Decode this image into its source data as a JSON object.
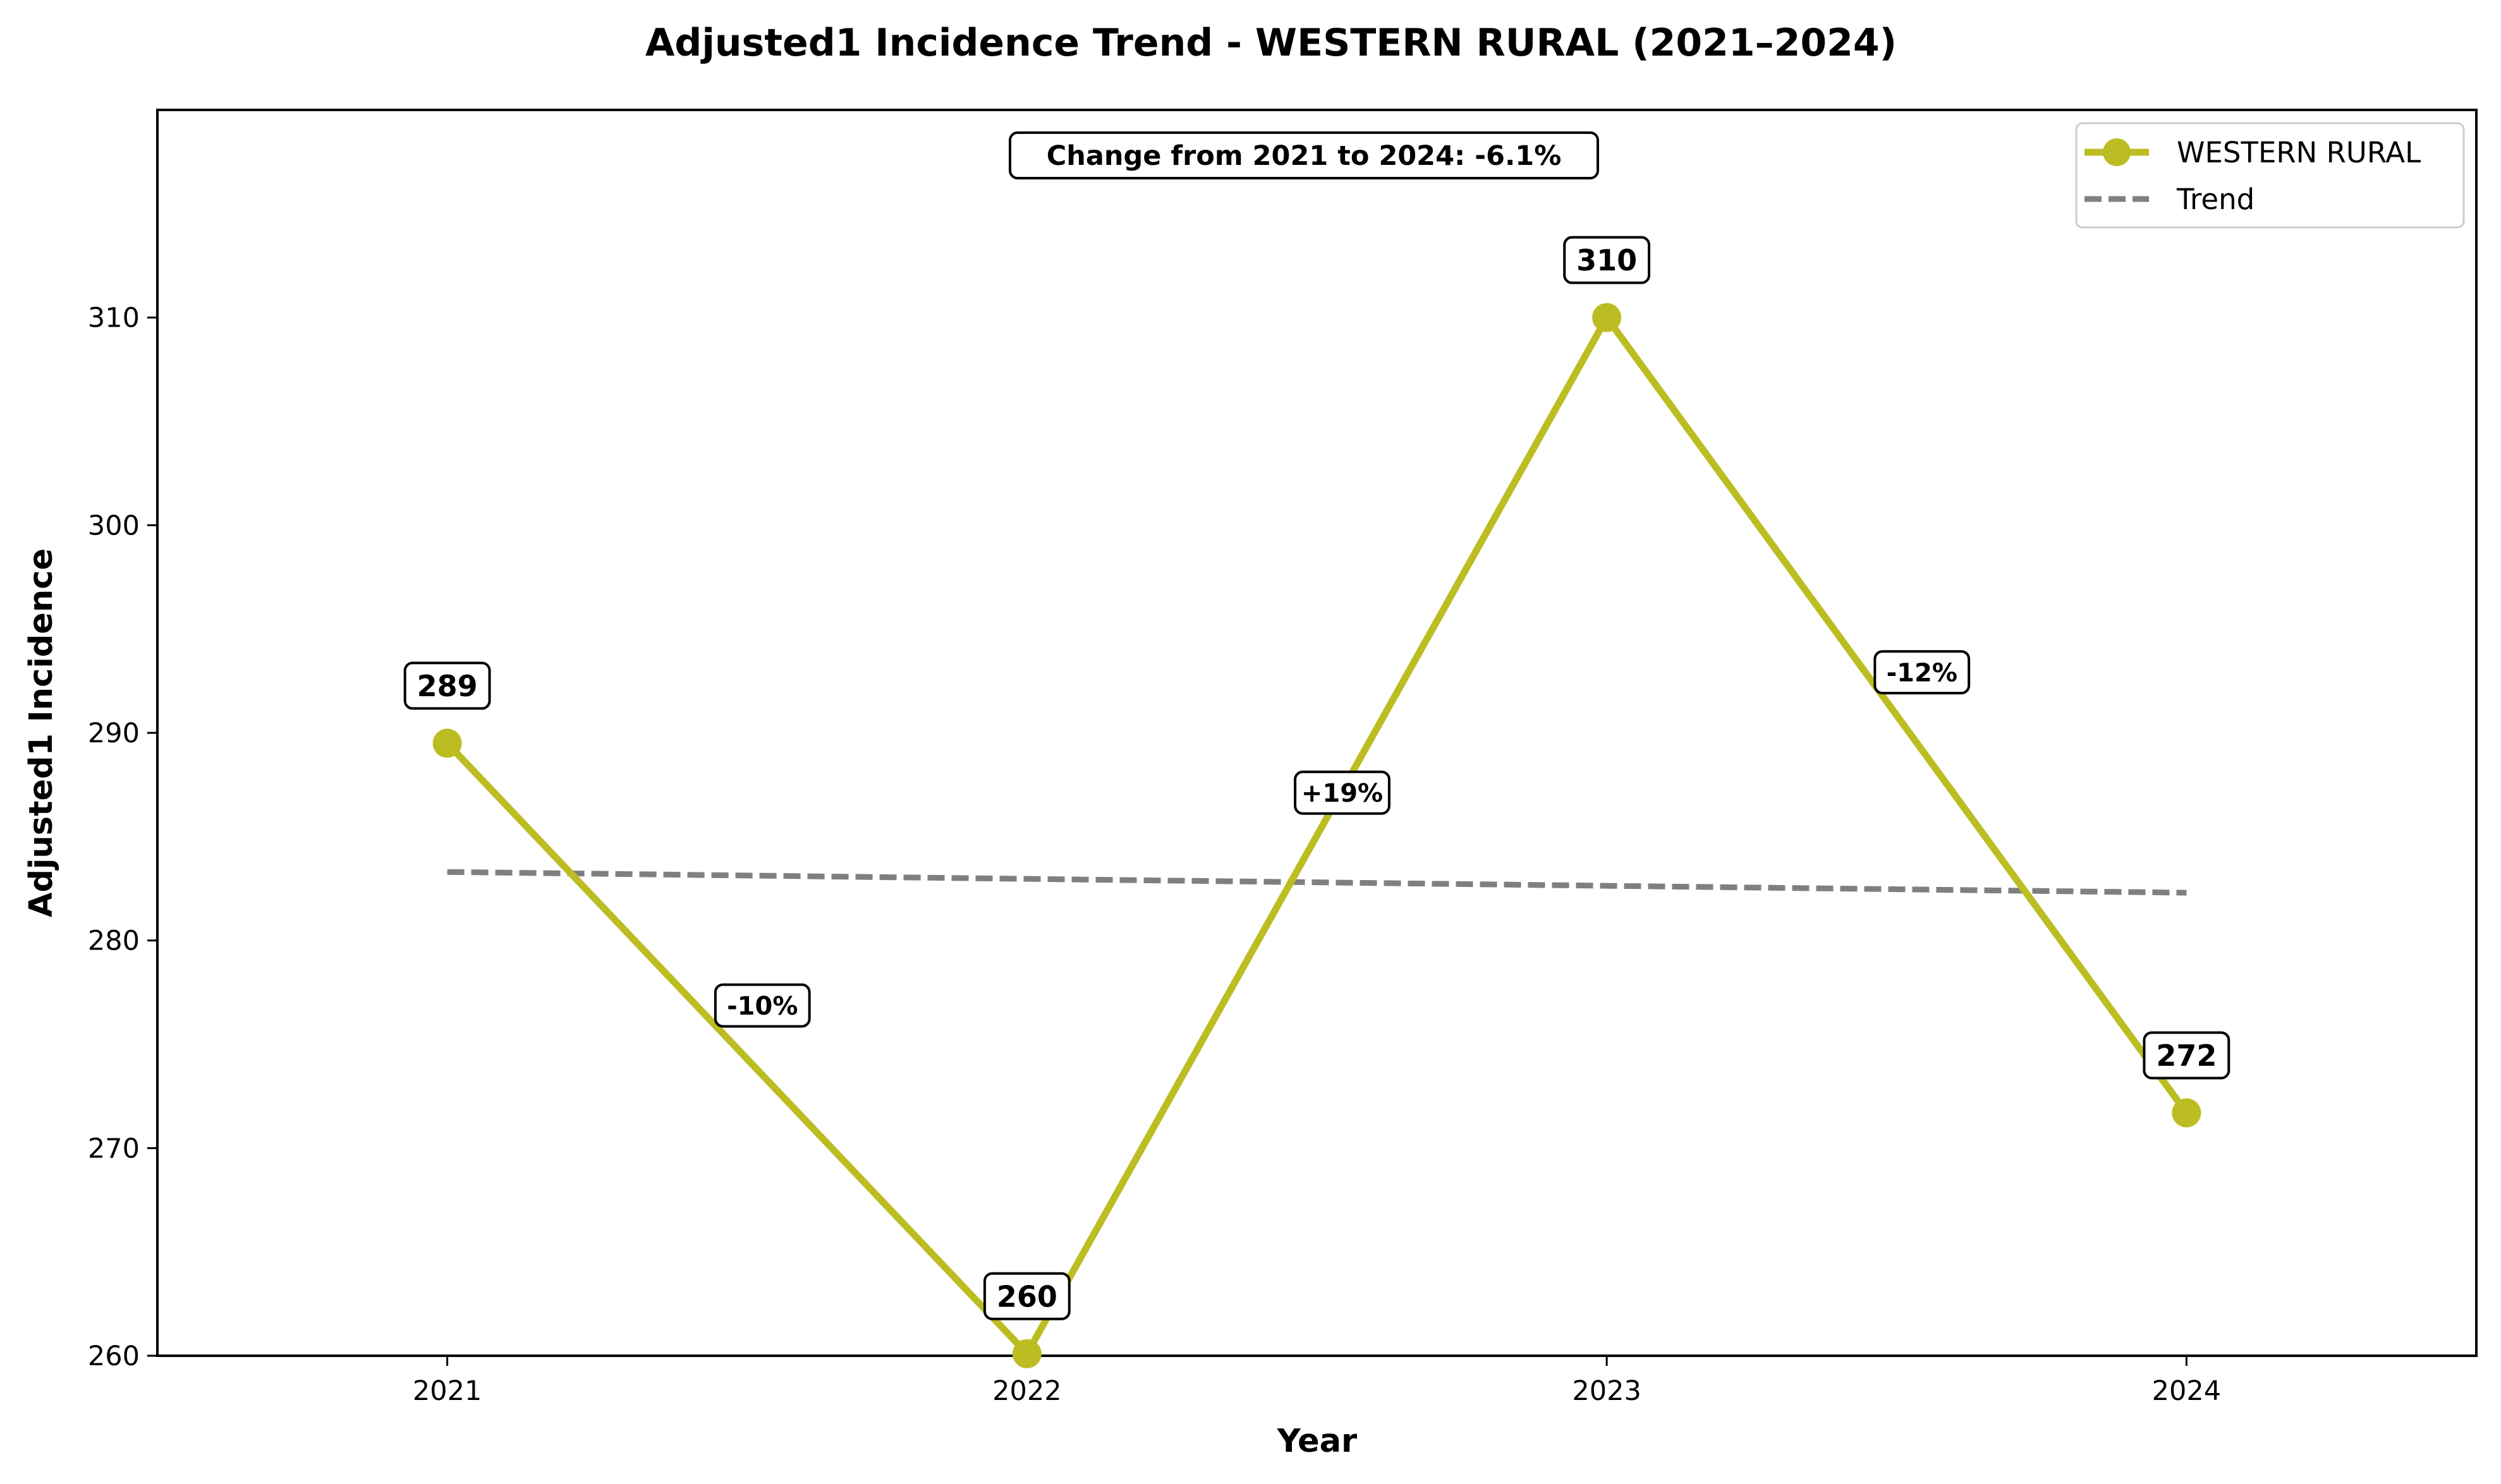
{
  "chart_data": {
    "type": "line",
    "title": "Adjusted1 Incidence Trend - WESTERN RURAL (2021–2024)",
    "xlabel": "Year",
    "ylabel": "Adjusted1 Incidence",
    "categories": [
      "2021",
      "2022",
      "2023",
      "2024"
    ],
    "xlim": [
      2020.5,
      2024.5
    ],
    "ylim": [
      260,
      320
    ],
    "yticks": [
      260,
      270,
      280,
      290,
      300,
      310
    ],
    "series": [
      {
        "name": "WESTERN RURAL",
        "x": [
          2021,
          2022,
          2023,
          2024
        ],
        "values": [
          289.5,
          260.1,
          310.0,
          271.7
        ],
        "point_labels": [
          "289",
          "260",
          "310",
          "272"
        ],
        "color": "#bcbd22"
      },
      {
        "name": "Trend",
        "x": [
          2021,
          2024
        ],
        "values": [
          283.3,
          282.3
        ],
        "color": "#7f7f7f",
        "style": "dashed"
      }
    ],
    "segment_labels": [
      "-10%",
      "+19%",
      "-12%"
    ],
    "annotation": "Change from 2021 to 2024: -6.1%",
    "legend_position": "top-right",
    "grid": false
  }
}
